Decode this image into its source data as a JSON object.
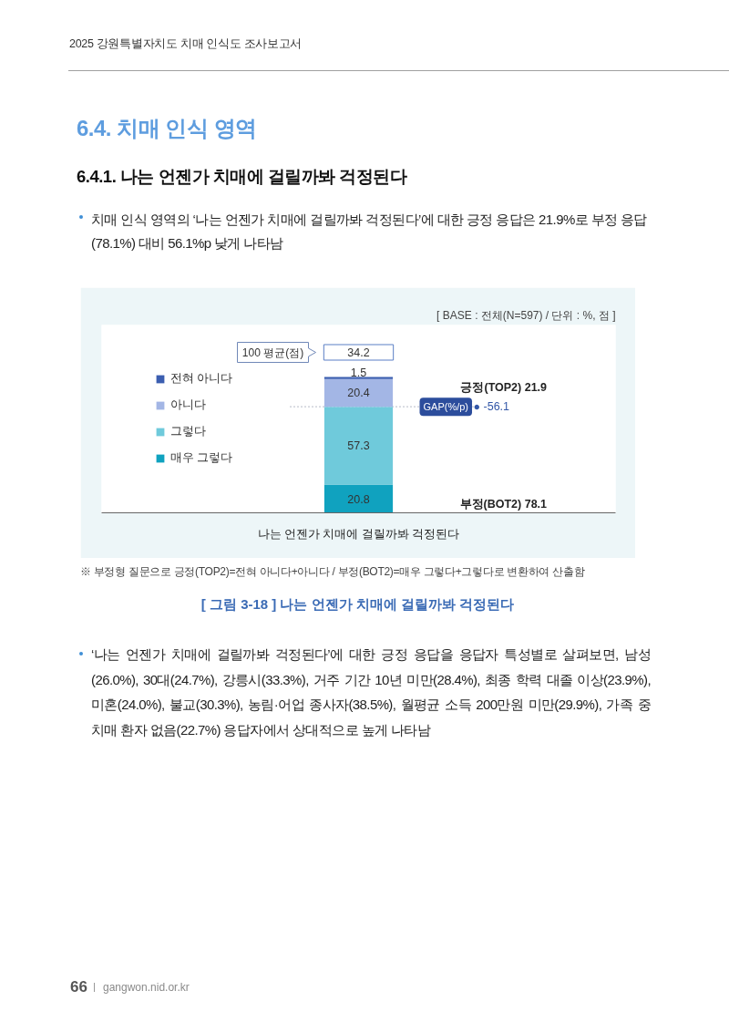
{
  "chart_data": {
    "type": "bar",
    "stacked": true,
    "title": "[ 그림 3-18 ] 나는 언젠가 치매에 걸릴까봐 걱정된다",
    "subtitle": "[ BASE : 전체(N=597) / 단위 : %, 점 ]",
    "categories": [
      "나는 언젠가 치매에 걸릴까봐 걱정된다"
    ],
    "series": [
      {
        "name": "매우 그렇다",
        "color": "#10a2bf",
        "values": [
          20.8
        ]
      },
      {
        "name": "그렇다",
        "color": "#6fcadb",
        "values": [
          57.3
        ]
      },
      {
        "name": "아니다",
        "color": "#a3b6e5",
        "values": [
          20.4
        ]
      },
      {
        "name": "전혀 아니다",
        "color": "#3b5eb0",
        "values": [
          1.5
        ]
      }
    ],
    "data_labels": true,
    "tick_labels": "x",
    "legend": "left",
    "ref_lines": [
      {
        "axis": "y",
        "value": 78.1,
        "label": "GAP(%/p)",
        "color": "#8a93a8",
        "line_style": "dotted"
      }
    ],
    "annotations": [
      "2025 강원특별자치도 치매 인식도 조사보고서",
      "6.4. 치매 인식 영역",
      "6.4.1. 나는 언젠가 치매에 걸릴까봐 걱정된다",
      "치매 인식 영역의 ‘나는 언젠가 치매에 걸릴까봐 걱정된다’에 대한 긍정 응답은 21.9%로 부정 응답(78.1%) 대비 56.1%p 낮게 나타남",
      "100 평균(점)",
      "34.2",
      "긍정(TOP2)  21.9",
      "● -56.1",
      "부정(BOT2)  78.1",
      "※ 부정형 질문으로 긍정(TOP2)=전혀 아니다+아니다 / 부정(BOT2)=매우 그렇다+그렇다로 변환하여 산출함",
      "‘나는 언젠가 치매에 걸릴까봐 걱정된다’에 대한 긍정 응답을 응답자 특성별로 살펴보면, 남성(26.0%), 30대(24.7%), 강릉시(33.3%), 거주 기간 10년 미만(28.4%), 최종 학력 대졸 이상(23.9%), 미혼(24.0%), 불교(30.3%), 농림·어업 종사자(38.5%), 월평균 소득 200만원 미만(29.9%), 가족 중 치매 환자 없음(22.7%) 응답자에서 상대적으로 높게 나타남",
      "66",
      "gangwon.nid.or.kr"
    ]
  }
}
